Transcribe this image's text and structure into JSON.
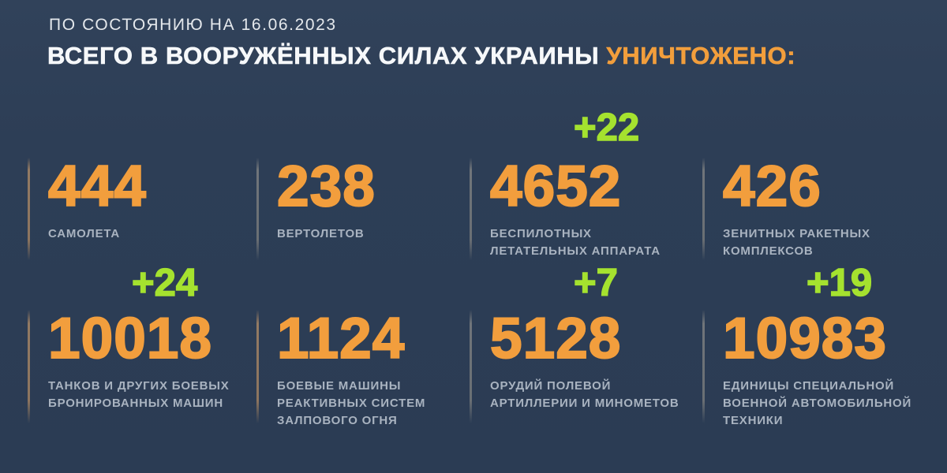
{
  "header": {
    "date_line": "ПО СОСТОЯНИЮ НА 16.06.2023",
    "title_main": "ВСЕГО В ВООРУЖЁННЫХ СИЛАХ УКРАИНЫ ",
    "title_accent": "УНИЧТОЖЕНО:"
  },
  "colors": {
    "background": "#2d3e56",
    "accent_orange": "#f29e3d",
    "accent_green": "#a5e22f",
    "label_gray": "#a9b3c0",
    "divider_tan": "#937a63",
    "divider_gray": "#70757a",
    "title_white": "#f6f8fa"
  },
  "stats": [
    {
      "value": "444",
      "delta": "",
      "label": "САМОЛЕТА"
    },
    {
      "value": "238",
      "delta": "",
      "label": "ВЕРТОЛЕТОВ"
    },
    {
      "value": "4652",
      "delta": "+22",
      "label": "БЕСПИЛОТНЫХ\nЛЕТАТЕЛЬНЫХ АППАРАТА"
    },
    {
      "value": "426",
      "delta": "",
      "label": "ЗЕНИТНЫХ РАКЕТНЫХ\nКОМПЛЕКСОВ"
    },
    {
      "value": "10018",
      "delta": "+24",
      "label": "ТАНКОВ И ДРУГИХ БОЕВЫХ\nБРОНИРОВАННЫХ МАШИН"
    },
    {
      "value": "1124",
      "delta": "",
      "label": "БОЕВЫЕ МАШИНЫ\nРЕАКТИВНЫХ СИСТЕМ\nЗАЛПОВОГО ОГНЯ"
    },
    {
      "value": "5128",
      "delta": "+7",
      "label": "ОРУДИЙ ПОЛЕВОЙ\nАРТИЛЛЕРИИ И МИНОМЕТОВ"
    },
    {
      "value": "10983",
      "delta": "+19",
      "label": "ЕДИНИЦЫ СПЕЦИАЛЬНОЙ\nВОЕННОЙ АВТОМОБИЛЬНОЙ\nТЕХНИКИ"
    }
  ],
  "chart_data": {
    "type": "table",
    "title": "ВСЕГО В ВООРУЖЁННЫХ СИЛАХ УКРАИНЫ УНИЧТОЖЕНО:",
    "subtitle": "ПО СОСТОЯНИЮ НА 16.06.2023",
    "categories": [
      "самолета",
      "вертолетов",
      "беспилотных летательных аппарата",
      "зенитных ракетных комплексов",
      "танков и других боевых бронированных машин",
      "боевые машины реактивных систем залпового огня",
      "орудий полевой артиллерии и минометов",
      "единицы специальной военной автомобильной техники"
    ],
    "values": [
      444,
      238,
      4652,
      426,
      10018,
      1124,
      5128,
      10983
    ],
    "deltas": [
      null,
      null,
      22,
      null,
      24,
      null,
      7,
      19
    ],
    "layout": "2 rows x 4 columns, deltas shown in green above values"
  }
}
